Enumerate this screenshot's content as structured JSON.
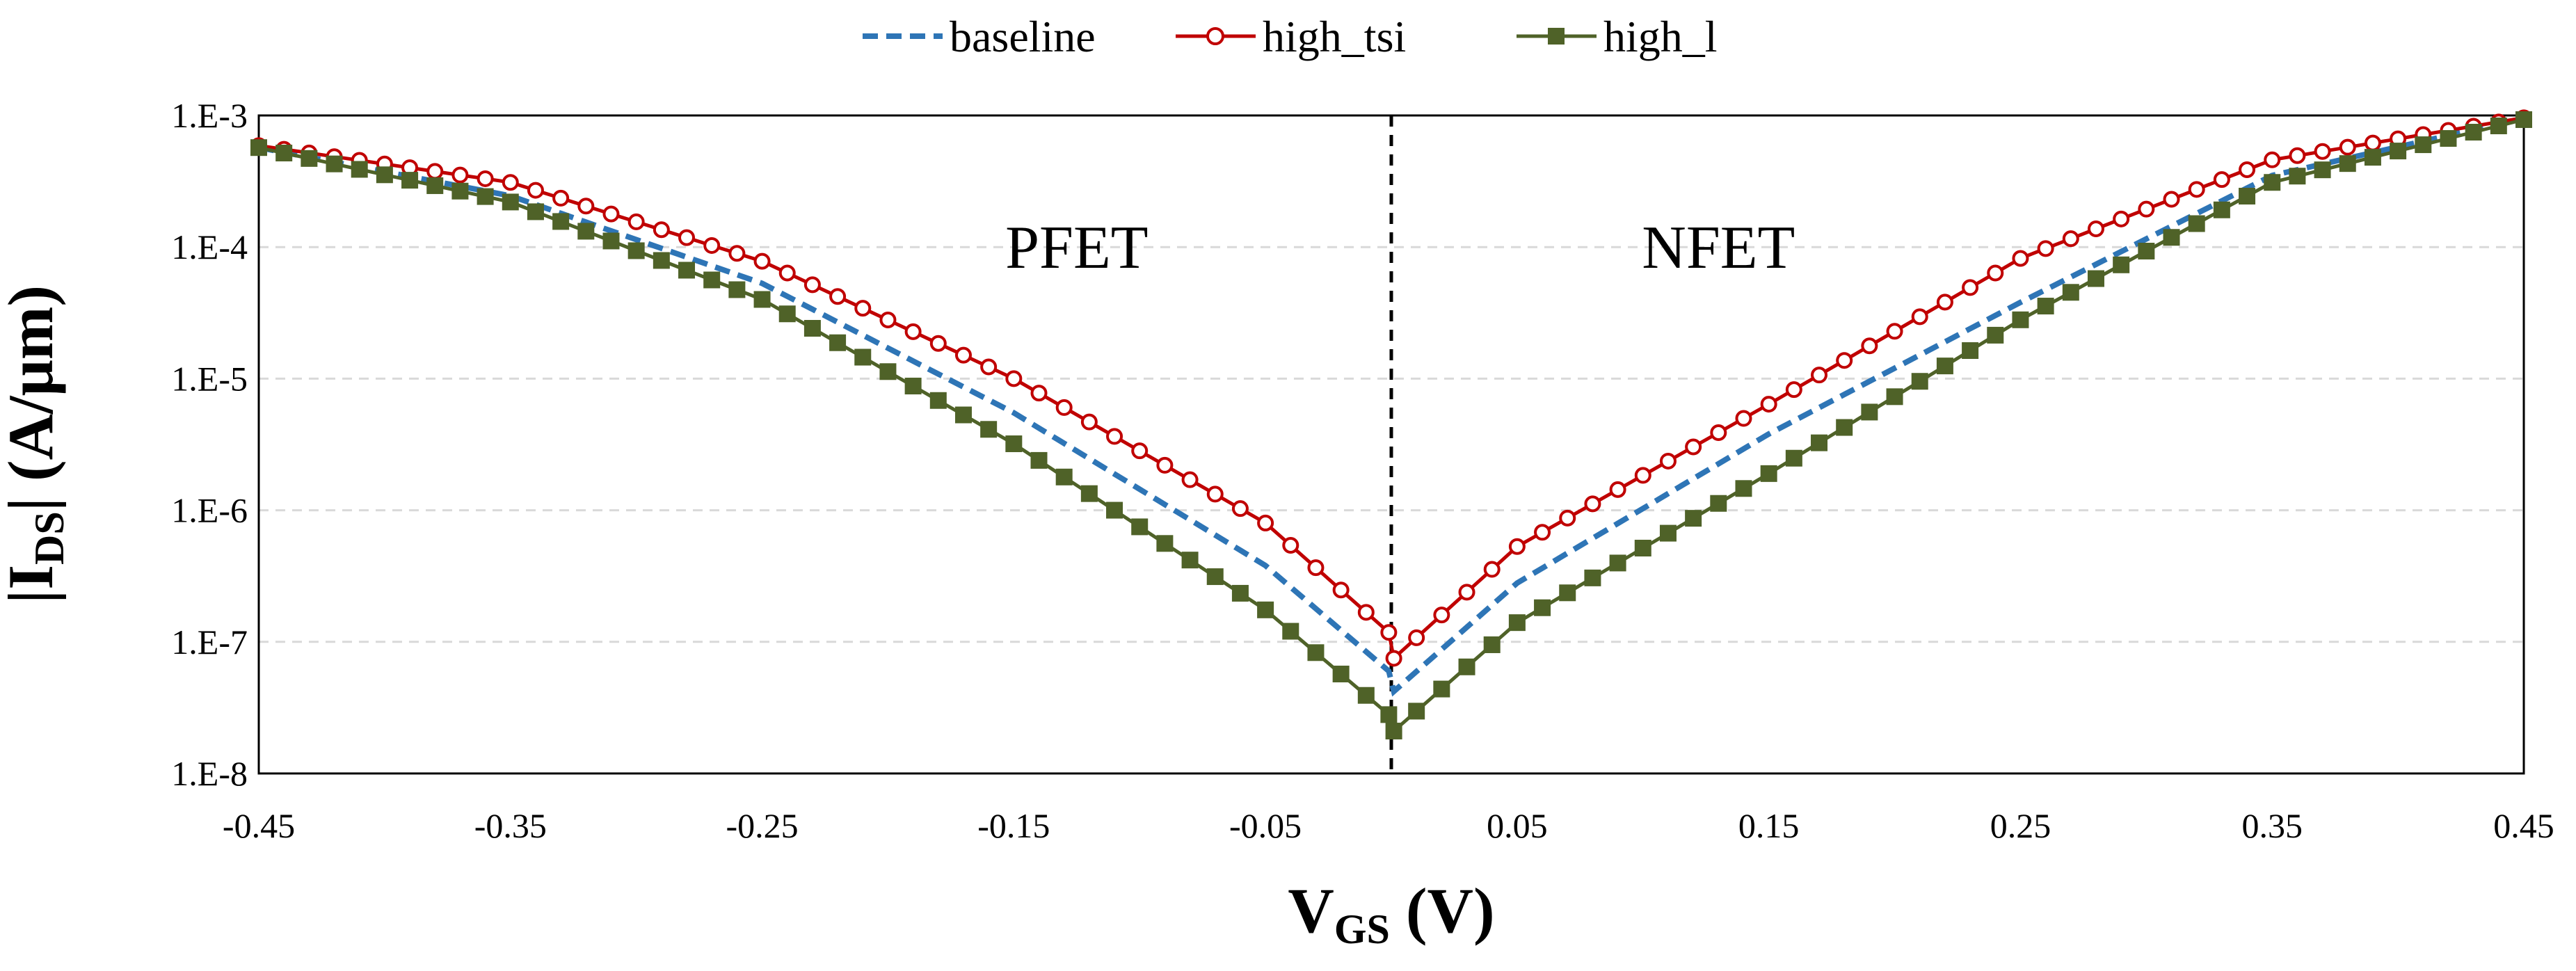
{
  "chart_data": {
    "type": "line",
    "x_tick_labels": [
      "-0.45",
      "-0.35",
      "-0.25",
      "-0.15",
      "-0.05",
      "0.05",
      "0.15",
      "0.25",
      "0.35",
      "0.45"
    ],
    "y_tick_labels": [
      "1.E-3",
      "1.E-4",
      "1.E-5",
      "1.E-6",
      "1.E-7",
      "1.E-8"
    ],
    "xlim": [
      -0.45,
      0.45
    ],
    "ylim": [
      1e-08,
      0.001
    ],
    "y_scale": "log",
    "grid": "horizontal dashed",
    "legend_position": "top-center",
    "xlabel": {
      "main": "V",
      "sub": "GS",
      "rest": " (V)"
    },
    "ylabel": {
      "pre": "|I",
      "sub": "DS",
      "post": "| (A/μm)"
    },
    "annotations": [
      "PFET",
      "NFET"
    ],
    "divider_x": 0.0,
    "series": [
      {
        "name": "baseline",
        "color": "#2E75B6",
        "style": "dashed",
        "marker": "none",
        "x": [
          -0.45,
          -0.35,
          -0.25,
          -0.15,
          -0.05,
          -0.001,
          0.001,
          0.05,
          0.15,
          0.25,
          0.35,
          0.45
        ],
        "y": [
          0.00057,
          0.000245,
          5.3e-05,
          5.5e-06,
          3.8e-07,
          6e-08,
          4.2e-08,
          2.8e-07,
          3.8e-06,
          3.8e-05,
          0.00035,
          0.00095
        ]
      },
      {
        "name": "high_tsi",
        "color": "#C00000",
        "style": "solid",
        "marker": "open-circle",
        "x": [
          -0.45,
          -0.35,
          -0.25,
          -0.15,
          -0.05,
          -0.001,
          0.001,
          0.05,
          0.15,
          0.25,
          0.35,
          0.45
        ],
        "y": [
          0.00059,
          0.00031,
          7.8e-05,
          1e-05,
          8e-07,
          1.18e-07,
          7.5e-08,
          5.3e-07,
          6.4e-06,
          8.2e-05,
          0.00046,
          0.00096
        ]
      },
      {
        "name": "high_l",
        "color": "#4F6228",
        "style": "solid",
        "marker": "filled-square",
        "x": [
          -0.45,
          -0.35,
          -0.25,
          -0.15,
          -0.05,
          -0.001,
          0.001,
          0.05,
          0.15,
          0.25,
          0.35,
          0.45
        ],
        "y": [
          0.00057,
          0.00022,
          4e-05,
          3.2e-06,
          1.75e-07,
          2.8e-08,
          2.1e-08,
          1.4e-07,
          1.9e-06,
          2.8e-05,
          0.00031,
          0.00093
        ]
      }
    ]
  }
}
